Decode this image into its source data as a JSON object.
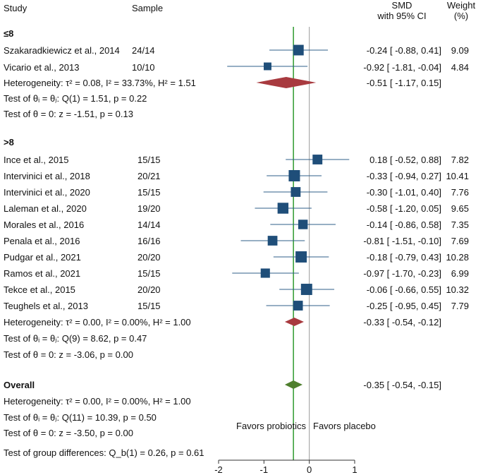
{
  "header": {
    "study": "Study",
    "sample": "Sample",
    "smd_line1": "SMD",
    "smd_line2": "with 95% CI",
    "weight_line1": "Weight",
    "weight_line2": "(%)"
  },
  "groups": [
    {
      "label": "≤8",
      "studies": [
        {
          "name": "Szakaradkiewicz et al., 2014",
          "sample": "24/14",
          "ci_text": "-0.24 [ -0.88,  0.41]",
          "weight_text": "9.09"
        },
        {
          "name": "Vicario et al., 2013",
          "sample": "10/10",
          "ci_text": "-0.92 [ -1.81, -0.04]",
          "weight_text": "4.84"
        }
      ],
      "heterogeneity": "Heterogeneity: τ² = 0.08, I² = 33.73%, H² = 1.51",
      "pooled_text": "-0.51 [ -1.17,  0.15]",
      "q_test": "Test of θᵢ = θⱼ: Q(1) = 1.51, p = 0.22",
      "z_test": "Test of θ = 0: z = -1.51, p = 0.13"
    },
    {
      "label": ">8",
      "studies": [
        {
          "name": "Ince et al., 2015",
          "sample": "15/15",
          "ci_text": "0.18 [ -0.52,  0.88]",
          "weight_text": "7.82"
        },
        {
          "name": "Intervinici et al., 2018",
          "sample": "20/21",
          "ci_text": "-0.33 [ -0.94,  0.27]",
          "weight_text": "10.41"
        },
        {
          "name": "Intervinici et al., 2020",
          "sample": "15/15",
          "ci_text": "-0.30 [ -1.01,  0.40]",
          "weight_text": "7.76"
        },
        {
          "name": "Laleman et al., 2020",
          "sample": "19/20",
          "ci_text": "-0.58 [ -1.20,  0.05]",
          "weight_text": "9.65"
        },
        {
          "name": "Morales et al., 2016",
          "sample": "14/14",
          "ci_text": "-0.14 [ -0.86,  0.58]",
          "weight_text": "7.35"
        },
        {
          "name": "Penala et al., 2016",
          "sample": "16/16",
          "ci_text": "-0.81 [ -1.51, -0.10]",
          "weight_text": "7.69"
        },
        {
          "name": "Pudgar et al., 2021",
          "sample": "20/20",
          "ci_text": "-0.18 [ -0.79,  0.43]",
          "weight_text": "10.28"
        },
        {
          "name": "Ramos et al., 2021",
          "sample": "15/15",
          "ci_text": "-0.97 [ -1.70, -0.23]",
          "weight_text": "6.99"
        },
        {
          "name": "Tekce et al., 2015",
          "sample": "20/20",
          "ci_text": "-0.06 [ -0.66,  0.55]",
          "weight_text": "10.32"
        },
        {
          "name": "Teughels et al., 2013",
          "sample": "15/15",
          "ci_text": "-0.25 [ -0.95,  0.45]",
          "weight_text": "7.79"
        }
      ],
      "heterogeneity": "Heterogeneity: τ² = 0.00, I² = 0.00%, H² = 1.00",
      "pooled_text": "-0.33 [ -0.54, -0.12]",
      "q_test": "Test of θᵢ = θⱼ: Q(9) = 8.62, p = 0.47",
      "z_test": "Test of θ = 0: z = -3.06, p = 0.00"
    }
  ],
  "overall": {
    "label": "Overall",
    "pooled_text": "-0.35 [ -0.54, -0.15]",
    "heterogeneity": "Heterogeneity: τ² = 0.00, I² = 0.00%, H² = 1.00",
    "q_test": "Test of θᵢ = θⱼ: Q(11) = 10.39, p = 0.50",
    "z_test": "Test of θ = 0: z = -3.50, p = 0.00"
  },
  "group_diff_test": "Test of group differences: Q_b(1) = 0.26, p = 0.61",
  "favors_left": "Favors probiotics",
  "favors_right": "Favors placebo",
  "chart_data": {
    "type": "forest",
    "title": "",
    "xlabel": "",
    "ylabel": "",
    "xlim": [
      -2,
      1
    ],
    "xticks": [
      -2,
      -1,
      0,
      1
    ],
    "null_line": 0,
    "overall_line": -0.35,
    "studies": [
      {
        "name": "Szakaradkiewicz et al., 2014",
        "est": -0.24,
        "lo": -0.88,
        "hi": 0.41,
        "weight": 9.09
      },
      {
        "name": "Vicario et al., 2013",
        "est": -0.92,
        "lo": -1.81,
        "hi": -0.04,
        "weight": 4.84
      },
      {
        "name": "Ince et al., 2015",
        "est": 0.18,
        "lo": -0.52,
        "hi": 0.88,
        "weight": 7.82
      },
      {
        "name": "Intervinici et al., 2018",
        "est": -0.33,
        "lo": -0.94,
        "hi": 0.27,
        "weight": 10.41
      },
      {
        "name": "Intervinici et al., 2020",
        "est": -0.3,
        "lo": -1.01,
        "hi": 0.4,
        "weight": 7.76
      },
      {
        "name": "Laleman et al., 2020",
        "est": -0.58,
        "lo": -1.2,
        "hi": 0.05,
        "weight": 9.65
      },
      {
        "name": "Morales et al., 2016",
        "est": -0.14,
        "lo": -0.86,
        "hi": 0.58,
        "weight": 7.35
      },
      {
        "name": "Penala et al., 2016",
        "est": -0.81,
        "lo": -1.51,
        "hi": -0.1,
        "weight": 7.69
      },
      {
        "name": "Pudgar et al., 2021",
        "est": -0.18,
        "lo": -0.79,
        "hi": 0.43,
        "weight": 10.28
      },
      {
        "name": "Ramos et al., 2021",
        "est": -0.97,
        "lo": -1.7,
        "hi": -0.23,
        "weight": 6.99
      },
      {
        "name": "Tekce et al., 2015",
        "est": -0.06,
        "lo": -0.66,
        "hi": 0.55,
        "weight": 10.32
      },
      {
        "name": "Teughels et al., 2013",
        "est": -0.25,
        "lo": -0.95,
        "hi": 0.45,
        "weight": 7.79
      }
    ],
    "pooled": [
      {
        "name": "≤8",
        "est": -0.51,
        "lo": -1.17,
        "hi": 0.15
      },
      {
        "name": ">8",
        "est": -0.33,
        "lo": -0.54,
        "hi": -0.12
      },
      {
        "name": "Overall",
        "est": -0.35,
        "lo": -0.54,
        "hi": -0.15
      }
    ],
    "colors": {
      "study_marker": "#1f4e79",
      "ci_line": "#2f5f8a",
      "subgroup_diamond": "#a83a3f",
      "overall_diamond": "#4f7f2e",
      "overall_line": "#2e9a2e",
      "null_line": "#999999",
      "axis": "#333333"
    }
  }
}
